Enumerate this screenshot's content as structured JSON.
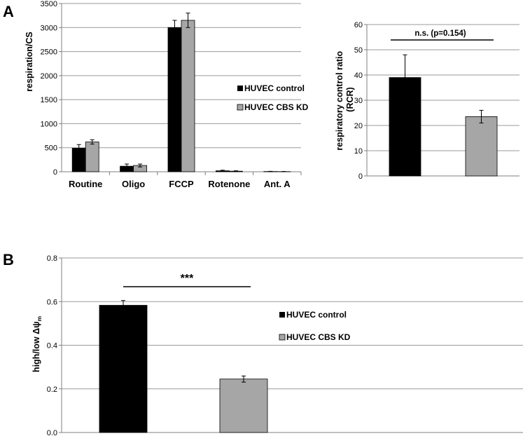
{
  "panels": {
    "a": "A",
    "b": "B"
  },
  "colors": {
    "control": "#000000",
    "kd": "#a6a6a6",
    "grid": "#9a9a9a",
    "axis": "#7f7f7f"
  },
  "chart_data": [
    {
      "id": "chartA1",
      "type": "bar",
      "title": "",
      "xlabel": "",
      "ylabel": "respiration/CS",
      "ylim": [
        0,
        3500
      ],
      "yticks": [
        0,
        500,
        1000,
        1500,
        2000,
        2500,
        3000,
        3500
      ],
      "categories": [
        "Routine",
        "Oligo",
        "FCCP",
        "Rotenone",
        "Ant. A"
      ],
      "series": [
        {
          "name": "HUVEC control",
          "values": [
            490,
            115,
            3000,
            20,
            5
          ],
          "errors": [
            75,
            45,
            150,
            12,
            4
          ]
        },
        {
          "name": "HUVEC CBS KD",
          "values": [
            620,
            130,
            3150,
            12,
            3
          ],
          "errors": [
            45,
            30,
            150,
            8,
            3
          ]
        }
      ],
      "legend_position": "right"
    },
    {
      "id": "chartA2",
      "type": "bar",
      "title": "",
      "xlabel": "",
      "ylabel": "respiratory control ratio (RCR)",
      "ylabel_lines": [
        "respiratory control ratio",
        "(RCR)"
      ],
      "ylim": [
        0,
        60
      ],
      "yticks": [
        0,
        10,
        20,
        30,
        40,
        50,
        60
      ],
      "categories": [
        "HUVEC control",
        "HUVEC CBS KD"
      ],
      "values": [
        39,
        23.5
      ],
      "errors": [
        9,
        2.5
      ],
      "annotation": "n.s. (p=0.154)"
    },
    {
      "id": "chartB",
      "type": "bar",
      "title": "",
      "xlabel": "",
      "ylabel": "high/low  Δψm",
      "ylabel_parts": {
        "main": "high/low  Δψ",
        "sub": "m"
      },
      "ylim": [
        0,
        0.8
      ],
      "yticks": [
        "0.0",
        "0.2",
        "0.4",
        "0.6",
        "0.8"
      ],
      "categories": [
        "HUVEC control",
        "HUVEC CBS KD"
      ],
      "values": [
        0.583,
        0.245
      ],
      "errors": [
        0.022,
        0.014
      ],
      "annotation": "***",
      "legend": [
        "HUVEC control",
        "HUVEC CBS KD"
      ],
      "legend_position": "right"
    }
  ]
}
